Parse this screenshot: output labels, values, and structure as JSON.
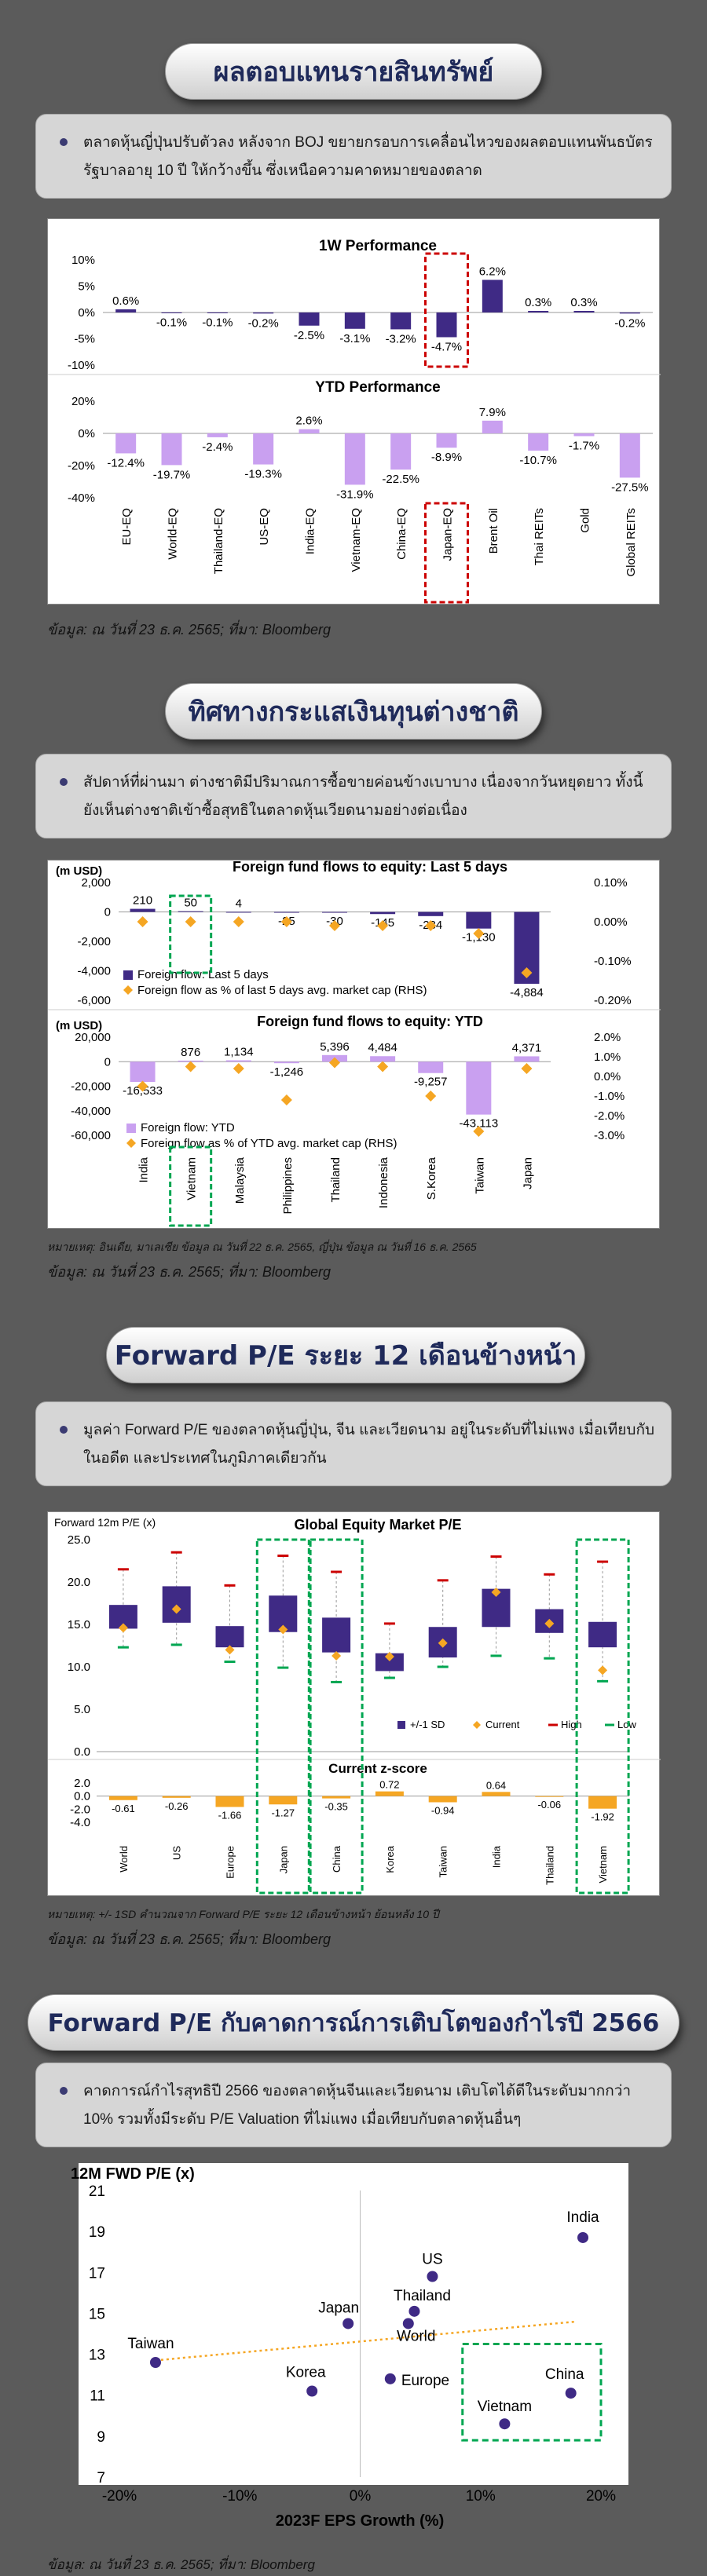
{
  "s1": {
    "title": "ผลตอบแทนรายสินทรัพย์",
    "text": "ตลาดหุ้นญี่ปุ่นปรับตัวลง หลังจาก BOJ ขยายกรอบการเคลื่อนไหวของผลตอบแทนพันธบัตรรัฐบาลอายุ 10 ปี ให้กว้างขึ้น ซึ่งเหนือความคาดหมายของตลาด",
    "source": "ข้อมูล: ณ วันที่ 23 ธ.ค. 2565; ที่มา: Bloomberg"
  },
  "s2": {
    "title": "ทิศทางกระแสเงินทุนต่างชาติ",
    "text": "สัปดาห์ที่ผ่านมา ต่างชาติมีปริมาณการซื้อขายค่อนข้างเบาบาง เนื่องจากวันหยุดยาว ทั้งนี้ยังเห็นต่างชาติเข้าซื้อสุทธิในตลาดหุ้นเวียดนามอย่างต่อเนื่อง",
    "note": "หมายเหตุ: อินเดีย, มาเลเซีย ข้อมูล ณ วันที่ 22 ธ.ค. 2565, ญี่ปุ่น ข้อมูล ณ วันที่ 16 ธ.ค. 2565",
    "source": "ข้อมูล: ณ วันที่ 23 ธ.ค. 2565; ที่มา: Bloomberg"
  },
  "s3": {
    "title": "Forward P/E ระยะ 12 เดือนข้างหน้า",
    "text": "มูลค่า Forward P/E ของตลาดหุ้นญี่ปุ่น, จีน และเวียดนาม อยู่ในระดับที่ไม่แพง เมื่อเทียบกับในอดีต และประเทศในภูมิภาคเดียวกัน",
    "note": "หมายเหตุ: +/- 1SD คำนวณจาก Forward P/E ระยะ 12 เดือนข้างหน้า ย้อนหลัง 10 ปี",
    "source": "ข้อมูล: ณ วันที่ 23 ธ.ค. 2565; ที่มา: Bloomberg"
  },
  "s4": {
    "title": "Forward P/E กับคาดการณ์การเติบโตของกำไรปี 2566",
    "text": "คาดการณ์กำไรสุทธิปี 2566 ของตลาดหุ้นจีนและเวียดนาม เติบโตได้ดีในระดับมากกว่า 10% รวมทั้งมีระดับ P/E Valuation ที่ไม่แพง เมื่อเทียบกับตลาดหุ้นอื่นๆ",
    "source": "ข้อมูล: ณ วันที่ 23 ธ.ค. 2565; ที่มา: Bloomberg"
  },
  "colors": {
    "navy": "#3f2a85",
    "lavender": "#c9a0f0",
    "orange": "#f5a623",
    "red": "#cc0000",
    "green": "#00a651"
  },
  "chart_data": [
    {
      "type": "bar",
      "title": "1W Performance",
      "categories": [
        "EU-EQ",
        "World-EQ",
        "Thailand-EQ",
        "US-EQ",
        "India-EQ",
        "Vietnam-EQ",
        "China-EQ",
        "Japan-EQ",
        "Brent Oil",
        "Thai REITs",
        "Gold",
        "Global REITs"
      ],
      "values": [
        0.6,
        -0.1,
        -0.1,
        -0.2,
        -2.5,
        -3.1,
        -3.2,
        -4.7,
        6.2,
        0.3,
        0.3,
        -0.2
      ],
      "yticks": [
        "10%",
        "5%",
        "0%",
        "-5%",
        "-10%"
      ],
      "ylim": [
        -10,
        10
      ],
      "highlight": "Japan-EQ"
    },
    {
      "type": "bar",
      "title": "YTD Performance",
      "categories": [
        "EU-EQ",
        "World-EQ",
        "Thailand-EQ",
        "US-EQ",
        "India-EQ",
        "Vietnam-EQ",
        "China-EQ",
        "Japan-EQ",
        "Brent Oil",
        "Thai REITs",
        "Gold",
        "Global REITs"
      ],
      "values": [
        -12.4,
        -19.7,
        -2.4,
        -19.3,
        2.6,
        -31.9,
        -22.5,
        -8.9,
        7.9,
        -10.7,
        -1.7,
        -27.5
      ],
      "yticks": [
        "20%",
        "0%",
        "-20%",
        "-40%"
      ],
      "ylim": [
        -40,
        20
      ]
    },
    {
      "type": "bar",
      "title": "Foreign fund flows to equity: Last 5 days",
      "unit": "(m USD)",
      "categories": [
        "India",
        "Vietnam",
        "Malaysia",
        "Philippines",
        "Thailand",
        "Indonesia",
        "S.Korea",
        "Taiwan",
        "Japan"
      ],
      "series": [
        {
          "name": "Foreign flow: Last 5 days",
          "values": [
            210,
            50,
            4,
            -25,
            -30,
            -145,
            -284,
            -1130,
            -4884
          ]
        },
        {
          "name": "Foreign flow as % of last 5 days avg. market cap (RHS)",
          "values": [
            0.0,
            0.0,
            0.0,
            0.0,
            -0.01,
            -0.01,
            -0.01,
            -0.03,
            -0.13
          ]
        }
      ],
      "yticks": [
        "2,000",
        "0",
        "-2,000",
        "-4,000",
        "-6,000"
      ],
      "y2ticks": [
        "0.10%",
        "0.00%",
        "-0.10%",
        "-0.20%"
      ],
      "ylim": [
        -6000,
        2000
      ],
      "y2lim": [
        -0.2,
        0.1
      ],
      "highlight": "Vietnam"
    },
    {
      "type": "bar",
      "title": "Foreign fund flows to equity: YTD",
      "unit": "(m USD)",
      "categories": [
        "India",
        "Vietnam",
        "Malaysia",
        "Philippines",
        "Thailand",
        "Indonesia",
        "S.Korea",
        "Taiwan",
        "Japan"
      ],
      "series": [
        {
          "name": "Foreign flow: YTD",
          "values": [
            -16533,
            876,
            1134,
            -1246,
            5396,
            4484,
            -9257,
            -43113,
            4371
          ]
        },
        {
          "name": "Foreign flow as % of YTD avg. market cap (RHS)",
          "values": [
            -0.5,
            0.5,
            0.4,
            -1.2,
            0.7,
            0.5,
            -1.0,
            -2.8,
            0.4
          ]
        }
      ],
      "yticks": [
        "20,000",
        "0",
        "-20,000",
        "-40,000",
        "-60,000"
      ],
      "y2ticks": [
        "2.0%",
        "1.0%",
        "0.0%",
        "-1.0%",
        "-2.0%",
        "-3.0%"
      ],
      "ylim": [
        -60000,
        20000
      ],
      "y2lim": [
        -3,
        2
      ],
      "highlight": "Vietnam"
    },
    {
      "type": "bar",
      "title": "Global Equity Market P/E",
      "ylabel": "Forward 12m P/E (x)",
      "categories": [
        "World",
        "US",
        "Europe",
        "Japan",
        "China",
        "Korea",
        "Taiwan",
        "India",
        "Thailand",
        "Vietnam"
      ],
      "boxes": [
        [
          14.5,
          17.3
        ],
        [
          15.2,
          19.5
        ],
        [
          12.3,
          14.8
        ],
        [
          14.1,
          18.4
        ],
        [
          11.7,
          15.8
        ],
        [
          9.5,
          11.6
        ],
        [
          11.1,
          14.7
        ],
        [
          14.7,
          19.2
        ],
        [
          14.0,
          16.8
        ],
        [
          12.3,
          15.3
        ]
      ],
      "current": [
        14.6,
        16.8,
        12.0,
        14.4,
        11.3,
        11.2,
        12.8,
        18.8,
        15.1,
        9.6
      ],
      "high": [
        21.5,
        23.5,
        19.6,
        23.1,
        21.2,
        15.1,
        20.2,
        23.0,
        20.9,
        22.4
      ],
      "low": [
        12.3,
        12.6,
        10.6,
        9.9,
        8.2,
        8.7,
        10.0,
        11.3,
        11.0,
        8.3
      ],
      "legend": [
        "+/-1 SD",
        "Current",
        "High",
        "Low"
      ],
      "yticks": [
        "25.0",
        "20.0",
        "15.0",
        "10.0",
        "5.0",
        "0.0"
      ],
      "ylim": [
        0,
        25
      ],
      "highlight": [
        "Japan",
        "China",
        "Vietnam"
      ]
    },
    {
      "type": "bar",
      "title": "Current z-score",
      "categories": [
        "World",
        "US",
        "Europe",
        "Japan",
        "China",
        "Korea",
        "Taiwan",
        "India",
        "Thailand",
        "Vietnam"
      ],
      "values": [
        -0.61,
        -0.26,
        -1.66,
        -1.27,
        -0.35,
        0.72,
        -0.94,
        0.64,
        -0.06,
        -1.92
      ],
      "yticks": [
        "2.0",
        "0.0",
        "-2.0",
        "-4.0"
      ],
      "ylim": [
        -4,
        2
      ]
    },
    {
      "type": "scatter",
      "ylabel": "12M FWD P/E (x)",
      "xlabel": "2023F EPS Growth (%)",
      "points": [
        {
          "label": "India",
          "x": 18.5,
          "y": 18.7
        },
        {
          "label": "US",
          "x": 6.0,
          "y": 16.8
        },
        {
          "label": "Thailand",
          "x": 4.5,
          "y": 15.1
        },
        {
          "label": "Japan",
          "x": -1.0,
          "y": 14.5
        },
        {
          "label": "World",
          "x": 4.0,
          "y": 14.5
        },
        {
          "label": "Taiwan",
          "x": -17.0,
          "y": 12.6
        },
        {
          "label": "Korea",
          "x": -4.0,
          "y": 11.2
        },
        {
          "label": "Europe",
          "x": 2.5,
          "y": 11.8
        },
        {
          "label": "China",
          "x": 17.5,
          "y": 11.1
        },
        {
          "label": "Vietnam",
          "x": 12.0,
          "y": 9.6
        }
      ],
      "xticks": [
        "-20%",
        "-10%",
        "0%",
        "10%",
        "20%"
      ],
      "yticks": [
        "7",
        "9",
        "11",
        "13",
        "15",
        "17",
        "19",
        "21"
      ],
      "xlim": [
        -20,
        20
      ],
      "ylim": [
        7,
        21
      ],
      "trendline": true,
      "highlight": [
        "China",
        "Vietnam"
      ]
    }
  ]
}
